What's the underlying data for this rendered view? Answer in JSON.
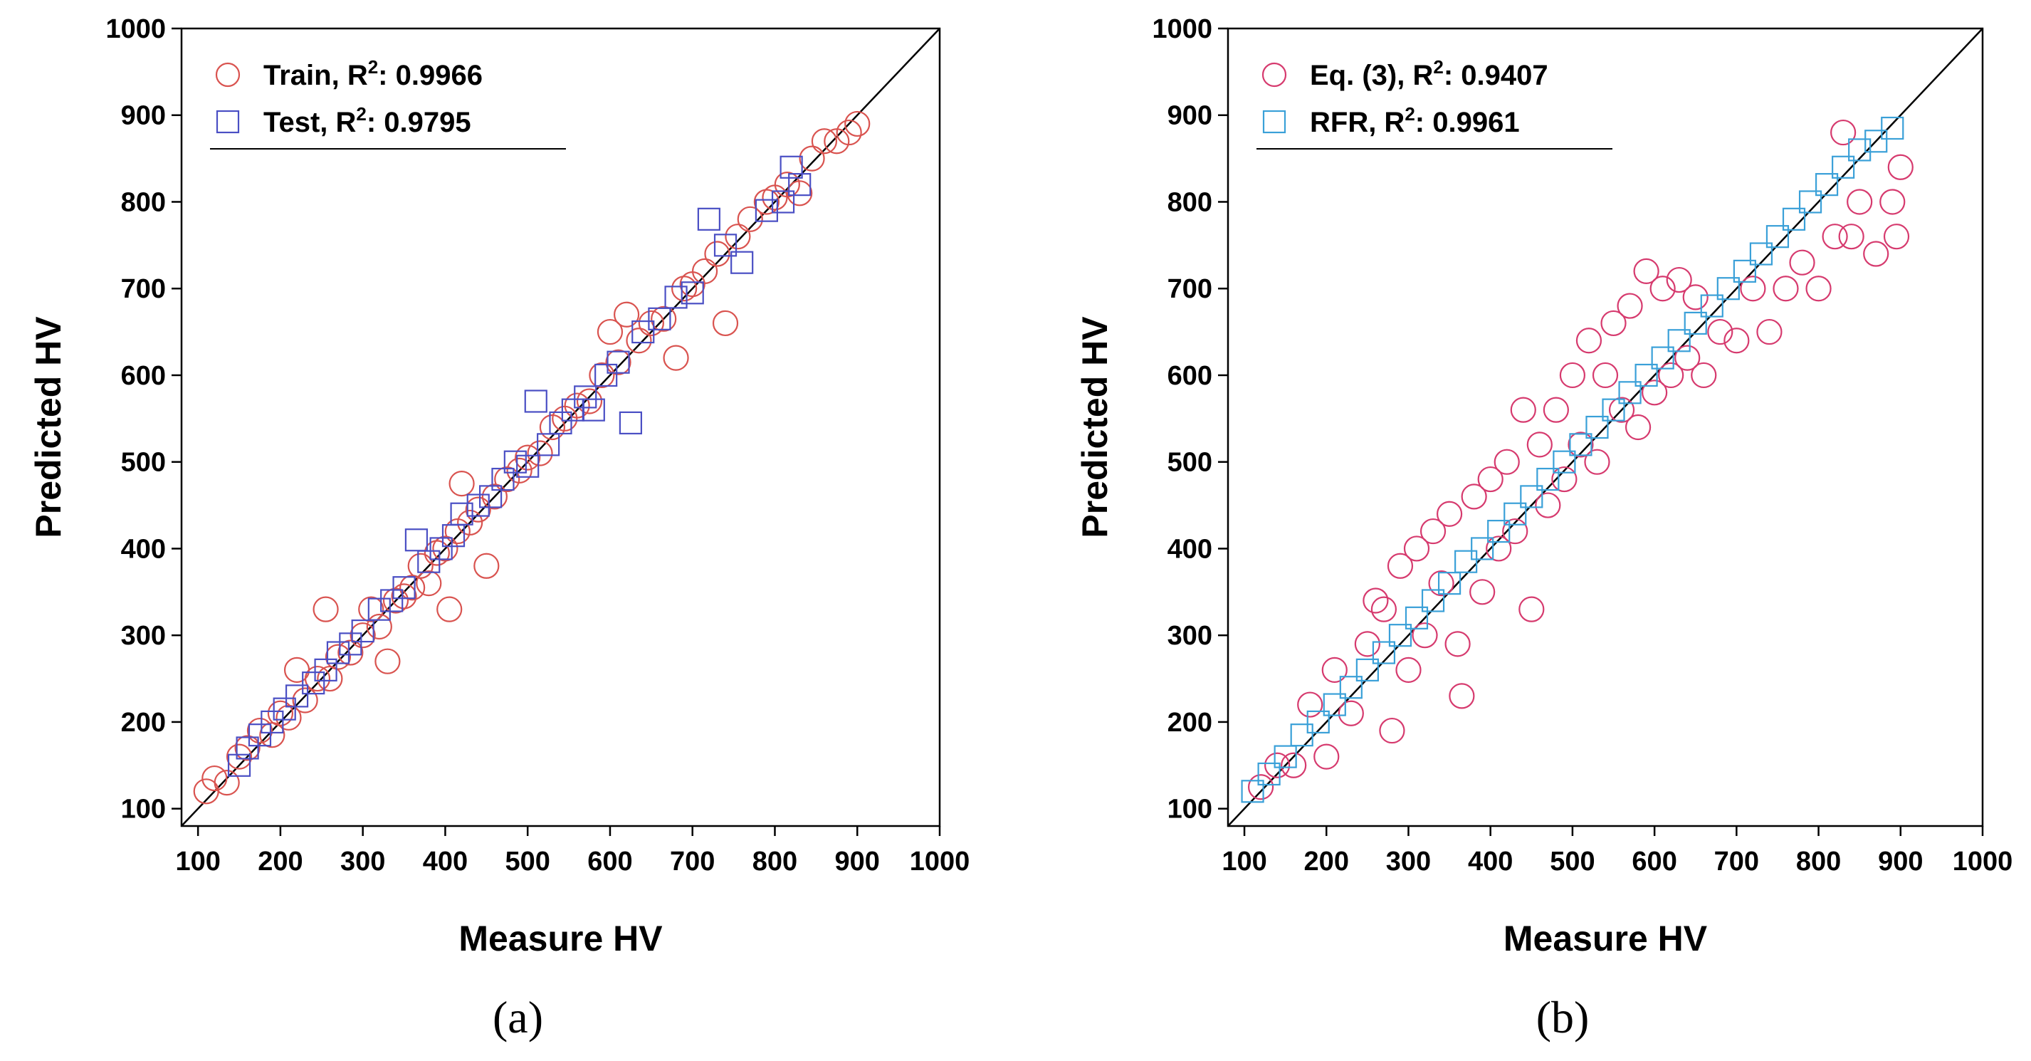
{
  "chart_data": [
    {
      "type": "scatter",
      "panel_label": "(a)",
      "xlabel": "Measure HV",
      "ylabel": "Predicted HV",
      "xlim": [
        80,
        1000
      ],
      "ylim": [
        80,
        1000
      ],
      "xticks": [
        "100",
        "200",
        "300",
        "400",
        "500",
        "600",
        "700",
        "800",
        "900",
        "1000"
      ],
      "yticks": [
        "100",
        "200",
        "300",
        "400",
        "500",
        "600",
        "700",
        "800",
        "900",
        "1000"
      ],
      "legend_position": "top-left",
      "identity_line": true,
      "series": [
        {
          "name": "Train, R",
          "sup": "2",
          "r2_text": ": 0.9966",
          "marker": "circle",
          "color": "#d9534f",
          "points": [
            [
              110,
              120
            ],
            [
              120,
              135
            ],
            [
              135,
              130
            ],
            [
              150,
              160
            ],
            [
              160,
              170
            ],
            [
              175,
              190
            ],
            [
              190,
              185
            ],
            [
              200,
              210
            ],
            [
              210,
              205
            ],
            [
              220,
              260
            ],
            [
              230,
              225
            ],
            [
              245,
              250
            ],
            [
              255,
              330
            ],
            [
              260,
              250
            ],
            [
              270,
              275
            ],
            [
              285,
              280
            ],
            [
              300,
              300
            ],
            [
              310,
              330
            ],
            [
              320,
              310
            ],
            [
              330,
              270
            ],
            [
              340,
              340
            ],
            [
              350,
              345
            ],
            [
              360,
              355
            ],
            [
              370,
              380
            ],
            [
              380,
              360
            ],
            [
              390,
              395
            ],
            [
              400,
              400
            ],
            [
              405,
              330
            ],
            [
              415,
              420
            ],
            [
              420,
              475
            ],
            [
              430,
              430
            ],
            [
              440,
              445
            ],
            [
              450,
              380
            ],
            [
              460,
              460
            ],
            [
              475,
              480
            ],
            [
              490,
              490
            ],
            [
              500,
              505
            ],
            [
              515,
              510
            ],
            [
              530,
              540
            ],
            [
              545,
              550
            ],
            [
              560,
              565
            ],
            [
              575,
              570
            ],
            [
              590,
              600
            ],
            [
              600,
              650
            ],
            [
              610,
              615
            ],
            [
              620,
              670
            ],
            [
              635,
              640
            ],
            [
              650,
              660
            ],
            [
              665,
              665
            ],
            [
              680,
              620
            ],
            [
              690,
              700
            ],
            [
              700,
              705
            ],
            [
              715,
              720
            ],
            [
              730,
              740
            ],
            [
              740,
              660
            ],
            [
              755,
              760
            ],
            [
              770,
              780
            ],
            [
              790,
              800
            ],
            [
              800,
              805
            ],
            [
              815,
              820
            ],
            [
              830,
              810
            ],
            [
              845,
              850
            ],
            [
              860,
              870
            ],
            [
              875,
              870
            ],
            [
              890,
              880
            ],
            [
              900,
              890
            ]
          ]
        },
        {
          "name": "Test, R",
          "sup": "2",
          "r2_text": ": 0.9795",
          "marker": "square",
          "color": "#4a4fc4",
          "points": [
            [
              150,
              150
            ],
            [
              160,
              170
            ],
            [
              175,
              185
            ],
            [
              190,
              200
            ],
            [
              205,
              215
            ],
            [
              220,
              230
            ],
            [
              240,
              245
            ],
            [
              255,
              260
            ],
            [
              270,
              280
            ],
            [
              285,
              290
            ],
            [
              300,
              305
            ],
            [
              320,
              330
            ],
            [
              335,
              340
            ],
            [
              350,
              355
            ],
            [
              365,
              410
            ],
            [
              380,
              385
            ],
            [
              395,
              400
            ],
            [
              410,
              415
            ],
            [
              420,
              440
            ],
            [
              440,
              450
            ],
            [
              455,
              460
            ],
            [
              470,
              480
            ],
            [
              485,
              500
            ],
            [
              500,
              495
            ],
            [
              510,
              570
            ],
            [
              525,
              520
            ],
            [
              540,
              545
            ],
            [
              555,
              560
            ],
            [
              570,
              575
            ],
            [
              580,
              560
            ],
            [
              595,
              600
            ],
            [
              610,
              615
            ],
            [
              625,
              545
            ],
            [
              640,
              650
            ],
            [
              660,
              665
            ],
            [
              680,
              690
            ],
            [
              700,
              695
            ],
            [
              720,
              780
            ],
            [
              740,
              750
            ],
            [
              760,
              730
            ],
            [
              790,
              790
            ],
            [
              810,
              800
            ],
            [
              820,
              840
            ],
            [
              830,
              820
            ]
          ]
        }
      ]
    },
    {
      "type": "scatter",
      "panel_label": "(b)",
      "xlabel": "Measure HV",
      "ylabel": "Predicted HV",
      "xlim": [
        80,
        1000
      ],
      "ylim": [
        80,
        1000
      ],
      "xticks": [
        "100",
        "200",
        "300",
        "400",
        "500",
        "600",
        "700",
        "800",
        "900",
        "1000"
      ],
      "yticks": [
        "100",
        "200",
        "300",
        "400",
        "500",
        "600",
        "700",
        "800",
        "900",
        "1000"
      ],
      "legend_position": "top-left",
      "identity_line": true,
      "series": [
        {
          "name": "Eq. (3), R",
          "sup": "2",
          "r2_text": ": 0.9407",
          "marker": "circle",
          "color": "#d63a6e",
          "points": [
            [
              120,
              125
            ],
            [
              140,
              150
            ],
            [
              160,
              150
            ],
            [
              180,
              220
            ],
            [
              200,
              160
            ],
            [
              210,
              260
            ],
            [
              230,
              210
            ],
            [
              250,
              290
            ],
            [
              260,
              340
            ],
            [
              270,
              330
            ],
            [
              280,
              190
            ],
            [
              290,
              380
            ],
            [
              300,
              260
            ],
            [
              310,
              400
            ],
            [
              320,
              300
            ],
            [
              330,
              420
            ],
            [
              340,
              360
            ],
            [
              350,
              440
            ],
            [
              360,
              290
            ],
            [
              365,
              230
            ],
            [
              380,
              460
            ],
            [
              390,
              350
            ],
            [
              400,
              480
            ],
            [
              410,
              400
            ],
            [
              420,
              500
            ],
            [
              430,
              420
            ],
            [
              440,
              560
            ],
            [
              450,
              330
            ],
            [
              460,
              520
            ],
            [
              470,
              450
            ],
            [
              480,
              560
            ],
            [
              490,
              480
            ],
            [
              500,
              600
            ],
            [
              510,
              520
            ],
            [
              520,
              640
            ],
            [
              530,
              500
            ],
            [
              540,
              600
            ],
            [
              550,
              660
            ],
            [
              560,
              560
            ],
            [
              570,
              680
            ],
            [
              580,
              540
            ],
            [
              590,
              720
            ],
            [
              600,
              580
            ],
            [
              610,
              700
            ],
            [
              620,
              600
            ],
            [
              630,
              710
            ],
            [
              640,
              620
            ],
            [
              650,
              690
            ],
            [
              660,
              600
            ],
            [
              680,
              650
            ],
            [
              700,
              640
            ],
            [
              720,
              700
            ],
            [
              740,
              650
            ],
            [
              760,
              700
            ],
            [
              780,
              730
            ],
            [
              800,
              700
            ],
            [
              820,
              760
            ],
            [
              830,
              880
            ],
            [
              840,
              760
            ],
            [
              850,
              800
            ],
            [
              870,
              740
            ],
            [
              890,
              800
            ],
            [
              895,
              760
            ],
            [
              900,
              840
            ]
          ]
        },
        {
          "name": "RFR, R",
          "sup": "2",
          "r2_text": ": 0.9961",
          "marker": "square",
          "color": "#3aa0d8",
          "points": [
            [
              110,
              120
            ],
            [
              130,
              140
            ],
            [
              150,
              160
            ],
            [
              170,
              185
            ],
            [
              190,
              200
            ],
            [
              210,
              220
            ],
            [
              230,
              240
            ],
            [
              250,
              260
            ],
            [
              270,
              280
            ],
            [
              290,
              300
            ],
            [
              310,
              320
            ],
            [
              330,
              340
            ],
            [
              350,
              360
            ],
            [
              370,
              385
            ],
            [
              390,
              400
            ],
            [
              410,
              420
            ],
            [
              430,
              440
            ],
            [
              450,
              460
            ],
            [
              470,
              480
            ],
            [
              490,
              500
            ],
            [
              510,
              520
            ],
            [
              530,
              540
            ],
            [
              550,
              560
            ],
            [
              570,
              580
            ],
            [
              590,
              600
            ],
            [
              610,
              620
            ],
            [
              630,
              640
            ],
            [
              650,
              660
            ],
            [
              670,
              680
            ],
            [
              690,
              700
            ],
            [
              710,
              720
            ],
            [
              730,
              740
            ],
            [
              750,
              760
            ],
            [
              770,
              780
            ],
            [
              790,
              800
            ],
            [
              810,
              820
            ],
            [
              830,
              840
            ],
            [
              850,
              860
            ],
            [
              870,
              870
            ],
            [
              890,
              885
            ]
          ]
        }
      ]
    }
  ]
}
